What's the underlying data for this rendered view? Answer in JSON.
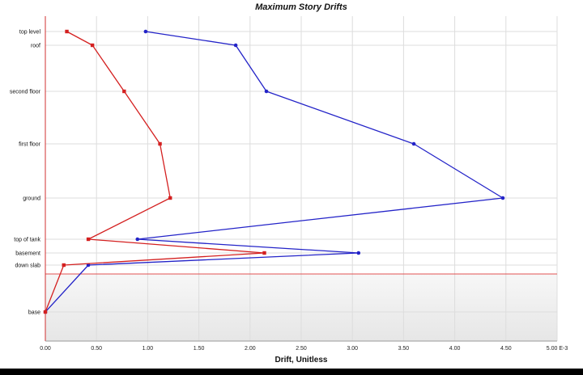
{
  "chart_data": {
    "type": "line",
    "title": "Maximum Story Drifts",
    "xlabel": "Drift, Unitless",
    "ylabel": "",
    "x_unit_label": "E-3",
    "xlim": [
      0,
      5.0
    ],
    "x_ticks": [
      "0.00",
      "0.50",
      "1.00",
      "1.50",
      "2.00",
      "2.50",
      "3.00",
      "3.50",
      "4.00",
      "4.50",
      "5.00 E-3"
    ],
    "stories": [
      "top level",
      "roof",
      "second floor",
      "first floor",
      "ground",
      "top of tank",
      "basement",
      "down slab",
      "base"
    ],
    "grid": true,
    "series": [
      {
        "color": "#2323c8",
        "points": [
          {
            "story": "top level",
            "x": 0.98
          },
          {
            "story": "roof",
            "x": 1.86
          },
          {
            "story": "second floor",
            "x": 2.16
          },
          {
            "story": "first floor",
            "x": 3.6
          },
          {
            "story": "ground",
            "x": 4.47
          },
          {
            "story": "top of tank",
            "x": 0.9
          },
          {
            "story": "basement",
            "x": 3.06
          },
          {
            "story": "down slab",
            "x": 0.42
          },
          {
            "story": "base",
            "x": 0.0
          }
        ]
      },
      {
        "color": "#d42020",
        "points": [
          {
            "story": "top level",
            "x": 0.21
          },
          {
            "story": "roof",
            "x": 0.46
          },
          {
            "story": "second floor",
            "x": 0.77
          },
          {
            "story": "first floor",
            "x": 1.12
          },
          {
            "story": "ground",
            "x": 1.22
          },
          {
            "story": "top of tank",
            "x": 0.42
          },
          {
            "story": "basement",
            "x": 2.14
          },
          {
            "story": "down slab",
            "x": 0.18
          },
          {
            "story": "base",
            "x": 0.0
          }
        ]
      }
    ]
  }
}
